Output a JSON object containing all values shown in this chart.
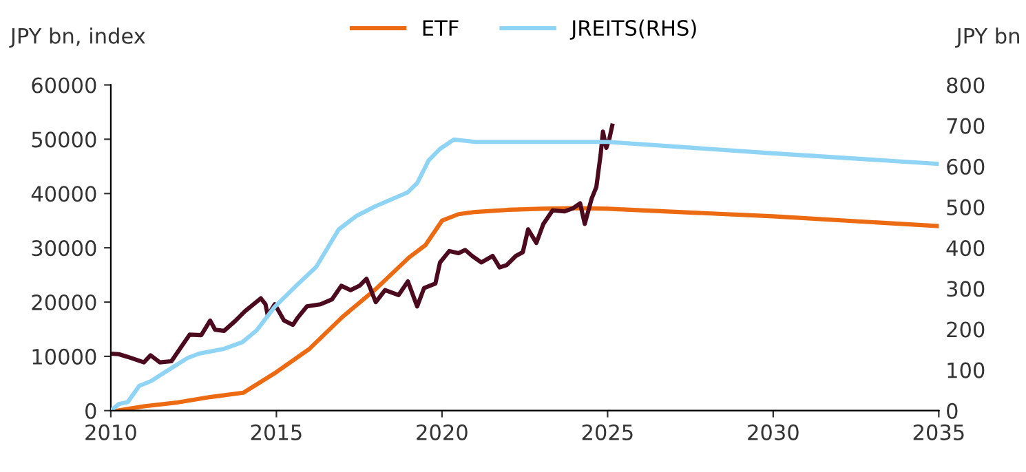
{
  "chart_data": {
    "type": "line",
    "ylabel": "JPY bn, index",
    "y2label": "JPY bn",
    "xlim": [
      2010,
      2035
    ],
    "xticks": [
      2010,
      2015,
      2020,
      2025,
      2030,
      2035
    ],
    "ylim": [
      0,
      60000
    ],
    "yticks": [
      0,
      10000,
      20000,
      30000,
      40000,
      50000,
      60000
    ],
    "y2lim": [
      0,
      800
    ],
    "y2ticks": [
      0,
      100,
      200,
      300,
      400,
      500,
      600,
      700,
      800
    ],
    "grid": false,
    "legend": "top",
    "marker": "none",
    "line_style": "solid",
    "series": [
      {
        "name": "ETF",
        "color": "#ec6a12",
        "x": [
          2010.2,
          2011,
          2012,
          2013,
          2014,
          2015,
          2016,
          2017,
          2018,
          2019,
          2019.5,
          2020,
          2020.5,
          2021,
          2022,
          2023,
          2024,
          2025,
          2030,
          2035
        ],
        "values": [
          0,
          800,
          1500,
          2500,
          3300,
          7100,
          11400,
          17300,
          22400,
          28200,
          30500,
          35000,
          36200,
          36600,
          37000,
          37200,
          37300,
          37200,
          35800,
          34000
        ]
      },
      {
        "color": "#4b0a1e",
        "x": [
          2010.0,
          2010.24,
          2010.51,
          2011.0,
          2011.2,
          2011.48,
          2011.83,
          2012.1,
          2012.38,
          2012.73,
          2013.0,
          2013.15,
          2013.42,
          2013.77,
          2014.05,
          2014.53,
          2014.67,
          2014.74,
          2014.95,
          2015.23,
          2015.5,
          2015.64,
          2015.92,
          2016.33,
          2016.68,
          2016.96,
          2017.24,
          2017.51,
          2017.72,
          2018.0,
          2018.28,
          2018.69,
          2018.97,
          2019.25,
          2019.46,
          2019.8,
          2019.94,
          2020.22,
          2020.5,
          2020.7,
          2020.91,
          2021.19,
          2021.53,
          2021.74,
          2021.95,
          2022.23,
          2022.44,
          2022.6,
          2022.85,
          2023.06,
          2023.34,
          2023.69,
          2023.96,
          2024.17,
          2024.31,
          2024.52,
          2024.66,
          2024.79,
          2024.86,
          2024.96,
          2025.05,
          2025.14
        ],
        "values": [
          10500,
          10400,
          9900,
          8900,
          10200,
          8900,
          9100,
          11500,
          14000,
          13900,
          16600,
          14900,
          14700,
          16600,
          18300,
          20700,
          19600,
          17500,
          19600,
          16600,
          15800,
          17100,
          19200,
          19600,
          20500,
          23000,
          22200,
          23000,
          24300,
          20000,
          22200,
          21300,
          23800,
          19200,
          22600,
          23400,
          27300,
          29400,
          29000,
          29600,
          28500,
          27300,
          28500,
          26400,
          26800,
          28500,
          29200,
          33400,
          30900,
          34400,
          36900,
          36700,
          37300,
          38200,
          34400,
          39100,
          41200,
          47200,
          51400,
          48400,
          50000,
          52500
        ]
      },
      {
        "name": "JREITS(RHS)",
        "color": "#8fd3f5",
        "axis": "y2",
        "x": [
          2010.0,
          2010.24,
          2010.51,
          2010.86,
          2011.2,
          2011.76,
          2012.31,
          2012.66,
          2013.42,
          2013.97,
          2014.4,
          2014.95,
          2015.64,
          2016.2,
          2016.88,
          2017.43,
          2017.99,
          2018.96,
          2019.25,
          2019.6,
          2019.94,
          2020.36,
          2021,
          2022,
          2023,
          2024,
          2025,
          2030,
          2035
        ],
        "values": [
          0,
          16,
          21,
          61,
          72,
          101,
          129,
          140,
          152,
          168,
          197,
          255,
          310,
          353,
          445,
          479,
          502,
          536,
          559,
          615,
          643,
          666,
          660,
          660,
          660,
          660,
          660,
          632,
          606
        ]
      }
    ]
  }
}
